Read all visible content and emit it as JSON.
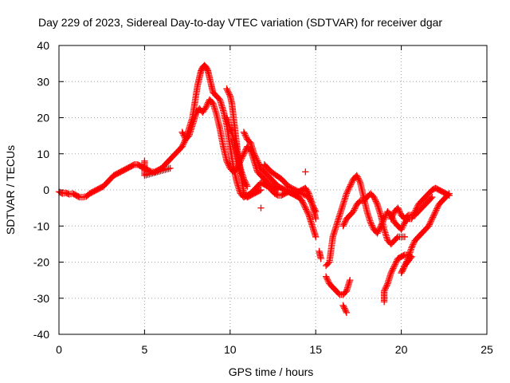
{
  "chart_data": {
    "type": "scatter",
    "title": "Day 229 of 2023, Sidereal Day-to-day VTEC variation (SDTVAR) for receiver dgar",
    "xlabel": "GPS time / hours",
    "ylabel": "SDTVAR / TECUs",
    "xlim": [
      0,
      25
    ],
    "ylim": [
      -40,
      40
    ],
    "xticks": [
      "0",
      "5",
      "10",
      "15",
      "20",
      "25"
    ],
    "yticks": [
      "40",
      "30",
      "20",
      "10",
      "0",
      "-10",
      "-20",
      "-30",
      "-40"
    ],
    "grid": true,
    "marker": "plus",
    "marker_color": "#ff0000",
    "series": [
      {
        "points": [
          [
            0.0,
            -0.5
          ],
          [
            0.2,
            -1.0
          ],
          [
            0.4,
            -0.8
          ],
          [
            0.6,
            -1.2
          ],
          [
            0.8,
            -1.0
          ],
          [
            1.0,
            -1.5
          ],
          [
            1.2,
            -2.0
          ],
          [
            1.4,
            -2.0
          ],
          [
            1.6,
            -1.8
          ],
          [
            1.8,
            -1.0
          ],
          [
            2.0,
            -0.5
          ],
          [
            2.2,
            0.0
          ],
          [
            2.4,
            0.5
          ],
          [
            2.6,
            1.0
          ],
          [
            2.8,
            2.0
          ],
          [
            3.0,
            3.0
          ],
          [
            3.2,
            4.0
          ],
          [
            3.4,
            4.5
          ],
          [
            3.6,
            5.0
          ],
          [
            3.8,
            5.5
          ],
          [
            4.0,
            6.0
          ],
          [
            4.2,
            6.5
          ],
          [
            4.4,
            7.0
          ],
          [
            4.6,
            7.0
          ],
          [
            4.8,
            6.5
          ],
          [
            5.0,
            6.0
          ],
          [
            5.2,
            5.5
          ],
          [
            5.4,
            5.0
          ],
          [
            5.6,
            5.0
          ],
          [
            5.8,
            5.5
          ],
          [
            6.0,
            6.0
          ],
          [
            6.2,
            7.0
          ],
          [
            6.4,
            8.0
          ],
          [
            6.6,
            9.0
          ],
          [
            6.8,
            10.0
          ],
          [
            7.0,
            11.0
          ],
          [
            7.2,
            12.0
          ],
          [
            7.4,
            14.0
          ],
          [
            7.6,
            17.0
          ],
          [
            7.8,
            20.0
          ],
          [
            8.0,
            26.0
          ],
          [
            8.1,
            29.0
          ],
          [
            8.2,
            31.0
          ],
          [
            8.3,
            33.0
          ],
          [
            8.4,
            34.0
          ],
          [
            8.5,
            34.5
          ],
          [
            8.6,
            34.0
          ],
          [
            8.7,
            33.0
          ],
          [
            8.8,
            31.0
          ],
          [
            8.9,
            29.0
          ],
          [
            9.0,
            27.0
          ],
          [
            9.2,
            26.0
          ],
          [
            9.4,
            25.0
          ],
          [
            9.6,
            22.0
          ],
          [
            9.8,
            18.0
          ],
          [
            10.0,
            12.0
          ],
          [
            10.2,
            6.0
          ],
          [
            10.4,
            2.0
          ],
          [
            10.6,
            -1.0
          ],
          [
            10.8,
            -2.0
          ],
          [
            11.0,
            -1.5
          ],
          [
            11.2,
            -1.0
          ],
          [
            11.4,
            0.0
          ],
          [
            11.6,
            1.0
          ],
          [
            11.8,
            2.0
          ],
          [
            12.0,
            1.5
          ],
          [
            12.2,
            1.0
          ],
          [
            12.4,
            0.0
          ],
          [
            12.6,
            -1.0
          ],
          [
            12.8,
            -1.5
          ],
          [
            13.0,
            -1.5
          ],
          [
            13.2,
            -1.0
          ],
          [
            13.4,
            -0.5
          ],
          [
            13.6,
            -1.0
          ],
          [
            13.8,
            -1.5
          ],
          [
            14.0,
            -2.0
          ],
          [
            14.2,
            -3.0
          ],
          [
            14.4,
            -5.0
          ],
          [
            14.6,
            -7.0
          ],
          [
            14.8,
            -10.0
          ],
          [
            15.0,
            -13.0
          ]
        ]
      },
      {
        "points": [
          [
            7.2,
            16.0
          ],
          [
            7.4,
            14.0
          ],
          [
            7.6,
            15.0
          ],
          [
            7.8,
            18.0
          ],
          [
            8.0,
            21.0
          ],
          [
            8.2,
            22.5
          ],
          [
            8.4,
            21.5
          ],
          [
            8.6,
            23.0
          ],
          [
            8.8,
            25.0
          ],
          [
            9.0,
            24.0
          ],
          [
            9.2,
            21.0
          ],
          [
            9.4,
            17.0
          ],
          [
            9.6,
            12.0
          ],
          [
            9.8,
            8.0
          ],
          [
            10.0,
            6.0
          ],
          [
            10.2,
            5.0
          ],
          [
            10.4,
            6.0
          ],
          [
            10.6,
            8.0
          ],
          [
            10.8,
            10.0
          ],
          [
            11.0,
            12.0
          ],
          [
            11.2,
            11.0
          ],
          [
            11.4,
            8.0
          ],
          [
            11.6,
            5.0
          ],
          [
            11.8,
            4.0
          ],
          [
            12.0,
            3.0
          ],
          [
            12.2,
            2.0
          ],
          [
            12.4,
            1.0
          ],
          [
            12.6,
            0.5
          ],
          [
            12.8,
            0.0
          ]
        ]
      },
      {
        "points": [
          [
            9.8,
            28.0
          ],
          [
            10.0,
            26.0
          ],
          [
            10.1,
            24.0
          ],
          [
            10.2,
            20.0
          ],
          [
            10.3,
            16.0
          ],
          [
            10.4,
            12.0
          ],
          [
            10.5,
            8.0
          ],
          [
            10.6,
            5.0
          ],
          [
            10.7,
            2.0
          ],
          [
            10.8,
            -1.0
          ],
          [
            11.0,
            -2.0
          ],
          [
            11.2,
            -1.5
          ],
          [
            11.4,
            -1.0
          ],
          [
            11.6,
            -0.5
          ],
          [
            11.8,
            0.0
          ]
        ]
      },
      {
        "points": [
          [
            9.8,
            20.0
          ],
          [
            10.0,
            17.0
          ],
          [
            10.1,
            16.0
          ],
          [
            10.2,
            14.0
          ],
          [
            10.4,
            10.0
          ],
          [
            10.6,
            6.0
          ],
          [
            10.8,
            3.0
          ],
          [
            11.0,
            1.0
          ]
        ]
      },
      {
        "points": [
          [
            10.8,
            16.0
          ],
          [
            11.0,
            14.0
          ],
          [
            11.2,
            13.0
          ],
          [
            11.4,
            10.0
          ],
          [
            11.6,
            8.0
          ],
          [
            11.8,
            6.0
          ],
          [
            12.0,
            5.0
          ],
          [
            12.2,
            4.0
          ],
          [
            12.4,
            3.0
          ],
          [
            12.6,
            2.0
          ],
          [
            12.8,
            1.0
          ],
          [
            13.0,
            0.5
          ],
          [
            13.2,
            0.0
          ],
          [
            13.4,
            -0.5
          ],
          [
            13.6,
            -1.0
          ],
          [
            13.8,
            -1.0
          ],
          [
            14.0,
            -0.5
          ],
          [
            14.2,
            0.0
          ],
          [
            14.4,
            0.5
          ],
          [
            14.6,
            -1.0
          ],
          [
            14.8,
            -4.0
          ],
          [
            15.0,
            -8.0
          ]
        ]
      },
      {
        "points": [
          [
            12.0,
            7.0
          ],
          [
            12.4,
            5.0
          ],
          [
            13.0,
            3.0
          ],
          [
            13.4,
            1.0
          ],
          [
            13.8,
            0.0
          ],
          [
            14.2,
            -1.0
          ],
          [
            14.6,
            -2.0
          ],
          [
            15.0,
            -6.0
          ]
        ]
      },
      {
        "points": [
          [
            5.0,
            8.0
          ],
          [
            5.0,
            4.0
          ],
          [
            6.5,
            6.0
          ],
          [
            11.8,
            -5.0
          ],
          [
            14.4,
            5.0
          ],
          [
            15.2,
            -17.0
          ],
          [
            15.3,
            -19.0
          ]
        ]
      },
      {
        "points": [
          [
            15.6,
            -21.0
          ],
          [
            15.8,
            -20.0
          ],
          [
            16.0,
            -13.0
          ],
          [
            16.2,
            -10.0
          ],
          [
            16.4,
            -7.0
          ],
          [
            16.6,
            -4.0
          ],
          [
            16.8,
            -1.0
          ],
          [
            17.0,
            1.0
          ],
          [
            17.2,
            3.0
          ],
          [
            17.4,
            4.0
          ],
          [
            17.6,
            2.0
          ],
          [
            17.8,
            -2.0
          ],
          [
            18.0,
            -6.0
          ],
          [
            18.2,
            -9.0
          ],
          [
            18.4,
            -11.0
          ],
          [
            18.6,
            -12.0
          ],
          [
            18.8,
            -10.0
          ],
          [
            19.0,
            -8.0
          ],
          [
            19.2,
            -6.0
          ],
          [
            19.4,
            -7.0
          ],
          [
            19.6,
            -9.0
          ],
          [
            19.8,
            -10.0
          ],
          [
            20.0,
            -11.0
          ],
          [
            20.2,
            -9.0
          ],
          [
            20.4,
            -8.0
          ],
          [
            20.6,
            -8.0
          ],
          [
            20.8,
            -6.0
          ],
          [
            21.0,
            -4.0
          ],
          [
            21.2,
            -3.0
          ],
          [
            21.4,
            -2.0
          ],
          [
            21.6,
            -1.0
          ],
          [
            21.8,
            0.0
          ],
          [
            22.0,
            0.5
          ],
          [
            22.2,
            0.0
          ],
          [
            22.4,
            -0.5
          ],
          [
            22.6,
            -1.0
          ],
          [
            22.8,
            -1.5
          ]
        ]
      },
      {
        "points": [
          [
            15.6,
            -24.0
          ],
          [
            15.8,
            -26.0
          ],
          [
            16.0,
            -27.0
          ],
          [
            16.2,
            -28.0
          ],
          [
            16.4,
            -29.0
          ],
          [
            16.6,
            -29.0
          ],
          [
            16.8,
            -28.0
          ],
          [
            17.0,
            -25.0
          ]
        ]
      },
      {
        "points": [
          [
            16.8,
            -34.0
          ],
          [
            16.6,
            -32.0
          ]
        ]
      },
      {
        "points": [
          [
            16.6,
            -10.0
          ],
          [
            16.8,
            -8.0
          ],
          [
            17.0,
            -7.0
          ],
          [
            17.2,
            -6.0
          ],
          [
            17.4,
            -4.0
          ],
          [
            17.6,
            -3.0
          ],
          [
            17.8,
            -3.0
          ],
          [
            18.0,
            -2.0
          ],
          [
            18.2,
            -1.0
          ],
          [
            18.4,
            -2.0
          ],
          [
            18.6,
            -4.0
          ],
          [
            18.8,
            -7.0
          ],
          [
            19.0,
            -11.0
          ],
          [
            19.2,
            -14.0
          ],
          [
            19.4,
            -15.0
          ],
          [
            19.6,
            -14.0
          ],
          [
            19.8,
            -13.0
          ],
          [
            20.0,
            -13.0
          ],
          [
            20.2,
            -13.0
          ]
        ]
      },
      {
        "points": [
          [
            19.0,
            -31.0
          ],
          [
            19.0,
            -28.0
          ],
          [
            19.2,
            -26.0
          ],
          [
            19.4,
            -23.0
          ],
          [
            19.6,
            -21.0
          ],
          [
            19.8,
            -19.0
          ],
          [
            20.0,
            -18.5
          ],
          [
            20.2,
            -18.0
          ],
          [
            20.4,
            -18.0
          ],
          [
            20.6,
            -18.5
          ],
          [
            20.2,
            -21.0
          ],
          [
            20.0,
            -23.0
          ],
          [
            20.4,
            -19.0
          ],
          [
            20.6,
            -16.0
          ],
          [
            20.8,
            -14.0
          ],
          [
            21.0,
            -13.0
          ],
          [
            21.2,
            -12.0
          ],
          [
            21.4,
            -11.0
          ],
          [
            21.6,
            -10.0
          ],
          [
            21.8,
            -8.0
          ],
          [
            22.0,
            -6.0
          ],
          [
            22.2,
            -4.0
          ],
          [
            22.4,
            -3.0
          ],
          [
            22.6,
            -2.0
          ],
          [
            22.8,
            -1.0
          ]
        ]
      },
      {
        "points": [
          [
            19.4,
            -8.0
          ],
          [
            19.6,
            -6.0
          ],
          [
            19.8,
            -5.0
          ],
          [
            20.0,
            -7.0
          ],
          [
            20.2,
            -8.0
          ],
          [
            20.4,
            -7.0
          ],
          [
            20.6,
            -7.0
          ],
          [
            20.8,
            -7.0
          ],
          [
            21.0,
            -6.0
          ],
          [
            21.2,
            -5.0
          ],
          [
            21.4,
            -4.0
          ],
          [
            21.6,
            -3.0
          ],
          [
            21.8,
            -2.0
          ]
        ]
      }
    ]
  }
}
